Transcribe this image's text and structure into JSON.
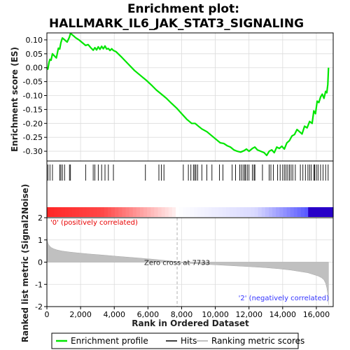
{
  "chart_data": [
    {
      "type": "line",
      "panel": "enrichment",
      "title_line1": "Enrichment plot:",
      "title_line2": "HALLMARK_IL6_JAK_STAT3_SIGNALING",
      "ylabel": "Enrichment score (ES)",
      "yticks": [
        "0.10",
        "0.05",
        "0.00",
        "-0.05",
        "-0.10",
        "-0.15",
        "-0.20",
        "-0.25",
        "-0.30"
      ],
      "ylim": [
        -0.335,
        0.125
      ],
      "xlim": [
        0,
        17000
      ],
      "grid": true,
      "series": [
        {
          "name": "Enrichment profile",
          "color": "#00e600",
          "x": [
            0,
            60,
            130,
            180,
            250,
            330,
            420,
            560,
            680,
            760,
            830,
            920,
            1050,
            1200,
            1340,
            1400,
            1550,
            1700,
            1900,
            2100,
            2300,
            2450,
            2600,
            2750,
            2850,
            2950,
            3050,
            3150,
            3250,
            3350,
            3450,
            3550,
            3650,
            3750,
            3850,
            3950,
            4100,
            4400,
            4800,
            5200,
            5600,
            5900,
            6200,
            6500,
            6800,
            7100,
            7400,
            7700,
            8000,
            8300,
            8600,
            8800,
            9000,
            9200,
            9500,
            9800,
            10100,
            10300,
            10500,
            10700,
            10900,
            11100,
            11300,
            11500,
            11700,
            11850,
            12000,
            12200,
            12350,
            12500,
            12700,
            12900,
            13050,
            13200,
            13350,
            13500,
            13650,
            13800,
            13950,
            14100,
            14250,
            14400,
            14550,
            14700,
            14850,
            15000,
            15150,
            15300,
            15450,
            15600,
            15750,
            15850,
            15950,
            16050,
            16150,
            16250,
            16350,
            16450,
            16550,
            16620,
            16680,
            16720
          ],
          "y": [
            0.0,
            -0.005,
            0.02,
            0.03,
            0.027,
            0.05,
            0.044,
            0.035,
            0.07,
            0.067,
            0.09,
            0.107,
            0.1,
            0.092,
            0.11,
            0.123,
            0.116,
            0.108,
            0.1,
            0.09,
            0.08,
            0.083,
            0.072,
            0.063,
            0.072,
            0.064,
            0.075,
            0.066,
            0.077,
            0.068,
            0.078,
            0.067,
            0.069,
            0.062,
            0.068,
            0.062,
            0.058,
            0.04,
            0.015,
            -0.01,
            -0.03,
            -0.045,
            -0.062,
            -0.08,
            -0.095,
            -0.11,
            -0.128,
            -0.145,
            -0.165,
            -0.185,
            -0.2,
            -0.2,
            -0.21,
            -0.22,
            -0.23,
            -0.245,
            -0.26,
            -0.27,
            -0.272,
            -0.28,
            -0.285,
            -0.295,
            -0.3,
            -0.303,
            -0.298,
            -0.292,
            -0.3,
            -0.29,
            -0.285,
            -0.295,
            -0.3,
            -0.305,
            -0.315,
            -0.3,
            -0.295,
            -0.305,
            -0.285,
            -0.29,
            -0.282,
            -0.292,
            -0.27,
            -0.262,
            -0.245,
            -0.24,
            -0.222,
            -0.23,
            -0.238,
            -0.21,
            -0.216,
            -0.193,
            -0.2,
            -0.155,
            -0.165,
            -0.12,
            -0.125,
            -0.105,
            -0.095,
            -0.11,
            -0.085,
            -0.09,
            -0.06,
            0.0
          ]
        }
      ]
    },
    {
      "type": "scatter",
      "panel": "hits",
      "series": [
        {
          "name": "Hits",
          "color": "#000000",
          "x": [
            60,
            180,
            330,
            760,
            830,
            920,
            1050,
            1340,
            1400,
            2300,
            2750,
            2850,
            3050,
            3250,
            3450,
            3650,
            3950,
            5850,
            6650,
            6800,
            6950,
            8100,
            8400,
            8550,
            8700,
            8780,
            8850,
            8950,
            9200,
            9500,
            9800,
            10250,
            10450,
            11000,
            11200,
            11450,
            11550,
            11650,
            11750,
            11800,
            11900,
            12000,
            12200,
            12300,
            12350,
            12800,
            13200,
            13300,
            13450,
            13700,
            13850,
            14000,
            14100,
            14200,
            14300,
            14400,
            14500,
            14600,
            14750,
            15050,
            15200,
            15350,
            15500,
            15600,
            15700,
            15850,
            15900,
            16000,
            16100,
            16250,
            16400,
            16550,
            16700
          ]
        }
      ]
    },
    {
      "type": "area",
      "panel": "ranked-list",
      "ylabel": "Ranked list metric (Signal2Noise)",
      "xlabel": "Rank in Ordered Dataset",
      "ylim": [
        -2,
        2
      ],
      "yticks": [
        "2",
        "1",
        "0",
        "-1",
        "-2"
      ],
      "xticks": [
        "0",
        "2,000",
        "4,000",
        "6,000",
        "8,000",
        "10,000",
        "12,000",
        "14,000",
        "16,000"
      ],
      "zero_cross_label": "Zero cross at 7733",
      "zero_cross_x": 7733,
      "pos_label": "'0' (positively correlated)",
      "neg_label": "'2' (negatively correlated)",
      "pos_label_color": "#e80000",
      "neg_label_color": "#3333ff",
      "series": [
        {
          "name": "Ranking metric scores",
          "color": "#c0c0c0",
          "x": [
            0,
            30,
            80,
            150,
            250,
            400,
            600,
            900,
            1300,
            1800,
            2500,
            3300,
            4200,
            5200,
            6200,
            7000,
            7500,
            7733,
            8000,
            9000,
            10000,
            11000,
            12000,
            13000,
            13800,
            14500,
            15000,
            15500,
            15800,
            16100,
            16300,
            16450,
            16550,
            16620,
            16680,
            16720
          ],
          "y": [
            1.22,
            0.95,
            0.82,
            0.74,
            0.66,
            0.6,
            0.55,
            0.5,
            0.46,
            0.42,
            0.37,
            0.32,
            0.26,
            0.2,
            0.14,
            0.08,
            0.04,
            0.0,
            -0.03,
            -0.08,
            -0.12,
            -0.16,
            -0.2,
            -0.25,
            -0.3,
            -0.36,
            -0.42,
            -0.48,
            -0.55,
            -0.62,
            -0.7,
            -0.8,
            -0.95,
            -1.15,
            -1.45,
            -1.92
          ]
        }
      ]
    }
  ],
  "legend": {
    "items": [
      "Enrichment profile",
      "Hits",
      "Ranking metric scores"
    ],
    "colors": [
      "#00e600",
      "#000000",
      "#c0c0c0"
    ]
  }
}
